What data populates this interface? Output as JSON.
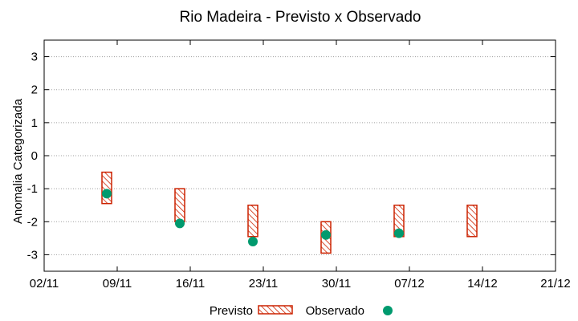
{
  "chart_data": {
    "type": "range-bar-scatter",
    "title": "Rio Madeira - Previsto x Observado",
    "xlabel": "",
    "ylabel": "Anomalia Categorizada",
    "xlim": [
      "2024-11-02",
      "2024-12-21"
    ],
    "ylim": [
      -3.5,
      3.5
    ],
    "x_tick_labels": [
      "02/11",
      "09/11",
      "16/11",
      "23/11",
      "30/11",
      "07/12",
      "14/12",
      "21/12"
    ],
    "y_ticks": [
      -3,
      -2,
      -1,
      0,
      1,
      2,
      3
    ],
    "grid": "horizontal-dotted",
    "legend_position": "bottom",
    "series": [
      {
        "name": "Previsto",
        "style": "hatched-range-box",
        "color": "#cc2200",
        "points": [
          {
            "x": "2024-11-08",
            "low": -1.45,
            "high": -0.5
          },
          {
            "x": "2024-11-15",
            "low": -2.0,
            "high": -1.0
          },
          {
            "x": "2024-11-22",
            "low": -2.45,
            "high": -1.5
          },
          {
            "x": "2024-11-29",
            "low": -2.95,
            "high": -2.0
          },
          {
            "x": "2024-12-06",
            "low": -2.45,
            "high": -1.5
          },
          {
            "x": "2024-12-13",
            "low": -2.45,
            "high": -1.5
          }
        ]
      },
      {
        "name": "Observado",
        "style": "circle",
        "color": "#009a6e",
        "points": [
          {
            "x": "2024-11-08",
            "y": -1.15
          },
          {
            "x": "2024-11-15",
            "y": -2.05
          },
          {
            "x": "2024-11-22",
            "y": -2.6
          },
          {
            "x": "2024-11-29",
            "y": -2.4
          },
          {
            "x": "2024-12-06",
            "y": -2.35
          }
        ]
      }
    ]
  }
}
